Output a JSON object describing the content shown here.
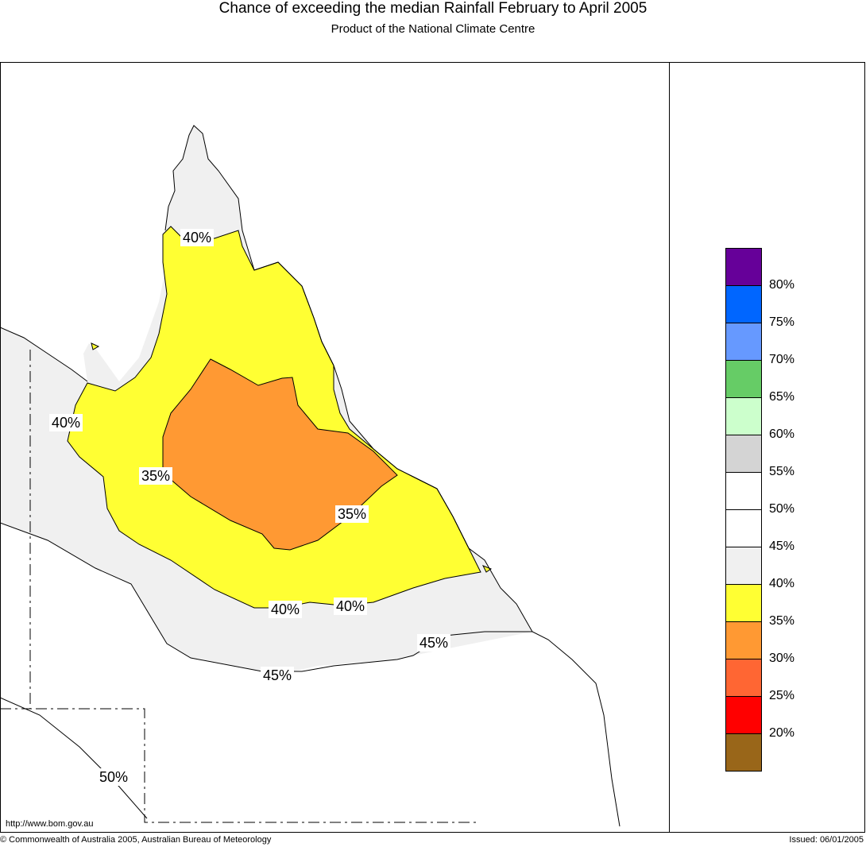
{
  "header": {
    "title": "Chance of exceeding the median Rainfall February to April 2005",
    "subtitle": "Product of the National Climate Centre"
  },
  "map": {
    "contour_labels": [
      {
        "id": "40-north",
        "text": "40%"
      },
      {
        "id": "40-west",
        "text": "40%"
      },
      {
        "id": "35-west",
        "text": "35%"
      },
      {
        "id": "35-east",
        "text": "35%"
      },
      {
        "id": "40-south-a",
        "text": "40%"
      },
      {
        "id": "40-south-b",
        "text": "40%"
      },
      {
        "id": "45-east",
        "text": "45%"
      },
      {
        "id": "45-south",
        "text": "45%"
      },
      {
        "id": "50-south",
        "text": "50%"
      }
    ],
    "url": "http://www.bom.gov.au"
  },
  "legend": {
    "bands": [
      {
        "color": "#660099"
      },
      {
        "color": "#0066ff"
      },
      {
        "color": "#6699ff"
      },
      {
        "color": "#66cc66"
      },
      {
        "color": "#ccffcc"
      },
      {
        "color": "#d4d4d4"
      },
      {
        "color": "#ffffff"
      },
      {
        "color": "#ffffff"
      },
      {
        "color": "#f0f0f0"
      },
      {
        "color": "#ffff33"
      },
      {
        "color": "#ff9933"
      },
      {
        "color": "#ff6633"
      },
      {
        "color": "#ff0000"
      },
      {
        "color": "#996619"
      }
    ],
    "labels": [
      "80%",
      "75%",
      "70%",
      "65%",
      "60%",
      "55%",
      "50%",
      "45%",
      "40%",
      "35%",
      "30%",
      "25%",
      "20%"
    ]
  },
  "footer": {
    "copyright": "© Commonwealth of Australia 2005, Australian Bureau of Meteorology",
    "issued": "Issued: 06/01/2005"
  }
}
